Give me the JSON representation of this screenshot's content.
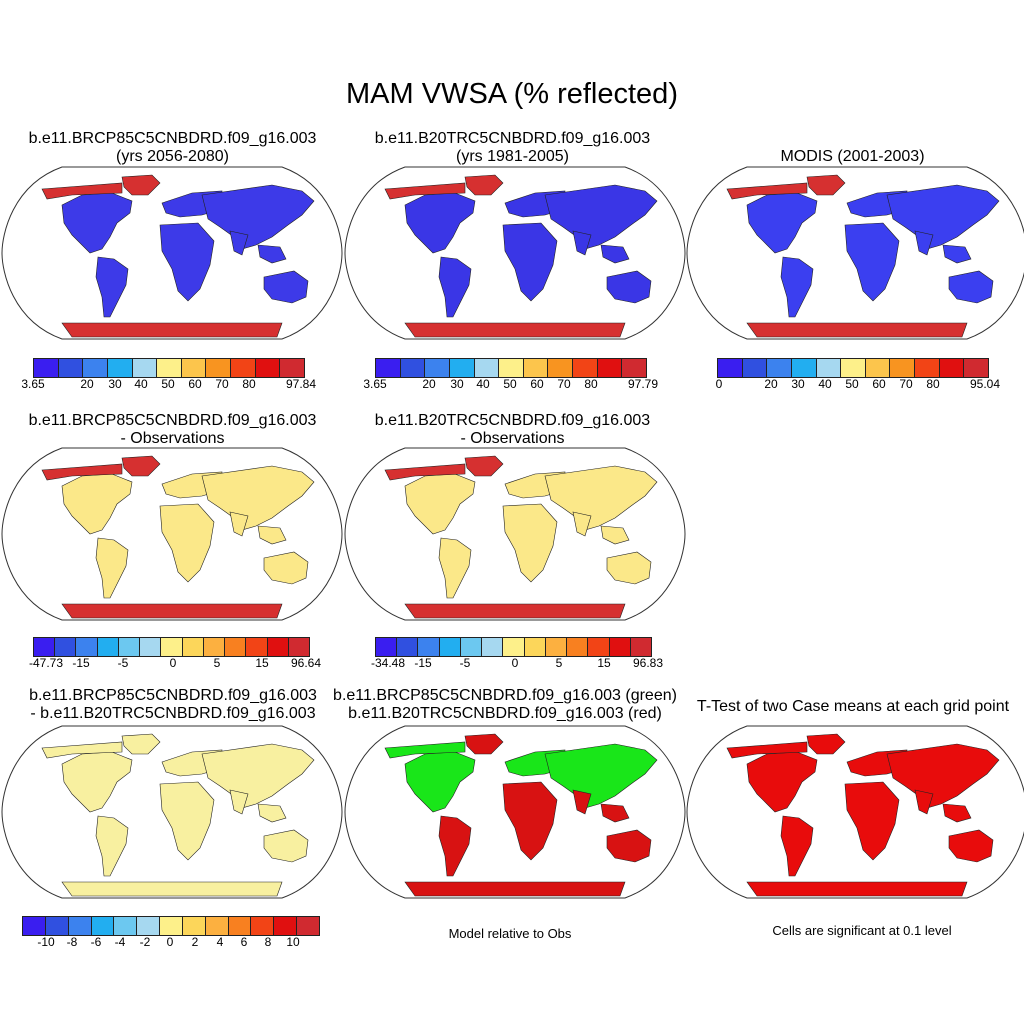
{
  "figure": {
    "title": "MAM VWSA (% reflected)"
  },
  "colors": {
    "full": [
      "#3a1ef0",
      "#3050e0",
      "#3c82ee",
      "#22aef0",
      "#a6d8f0",
      "#fdf08a",
      "#fcc54c",
      "#f89420",
      "#f24416",
      "#e01010",
      "#d02a30"
    ],
    "diff": [
      "#3a1ef0",
      "#3050e0",
      "#3c82ee",
      "#22aef0",
      "#6cc8f0",
      "#a6d8f0",
      "#fdf08a",
      "#fcd65a",
      "#fcb040",
      "#f88020",
      "#f24416",
      "#e01010",
      "#d02a30"
    ],
    "paired": [
      "#3a1ef0",
      "#3050e0",
      "#3c82ee",
      "#22aef0",
      "#6cc8f0",
      "#a6d8f0",
      "#fdf08a",
      "#fcd65a",
      "#fcb040",
      "#f88020",
      "#f24416",
      "#e01010",
      "#d02a30"
    ],
    "land_case1": "#3d3ae8",
    "land_case2": "#3a36e6",
    "land_obs": "#3b3ff0",
    "land_bias": "#fbe889",
    "land_diff": "#f8f0a0",
    "land_sig": "#e80c0c",
    "green": "#19e619",
    "red": "#d81212",
    "ice": "#d63030"
  },
  "panels": {
    "p1": {
      "title1": "b.e11.BRCP85C5CNBDRD.f09_g16.003",
      "title2": "(yrs 2056-2080)",
      "ticks": [
        "3.65",
        "20",
        "30",
        "40",
        "50",
        "60",
        "70",
        "80",
        "97.84"
      ]
    },
    "p2": {
      "title1": "b.e11.B20TRC5CNBDRD.f09_g16.003",
      "title2": "(yrs 1981-2005)",
      "ticks": [
        "3.65",
        "20",
        "30",
        "40",
        "50",
        "60",
        "70",
        "80",
        "97.79"
      ]
    },
    "p3": {
      "title1": "MODIS (2001-2003)",
      "ticks": [
        "0",
        "20",
        "30",
        "40",
        "50",
        "60",
        "70",
        "80",
        "95.04"
      ]
    },
    "p4": {
      "title1": "b.e11.BRCP85C5CNBDRD.f09_g16.003",
      "title2": "- Observations",
      "ticks": [
        "-47.73",
        "-15",
        "-5",
        "0",
        "5",
        "15",
        "96.64"
      ]
    },
    "p5": {
      "title1": "b.e11.B20TRC5CNBDRD.f09_g16.003",
      "title2": "- Observations",
      "ticks": [
        "-34.48",
        "-15",
        "-5",
        "0",
        "5",
        "15",
        "96.83"
      ]
    },
    "p7": {
      "title1": "b.e11.BRCP85C5CNBDRD.f09_g16.003",
      "title2": "- b.e11.B20TRC5CNBDRD.f09_g16.003",
      "ticks": [
        "-10",
        "-8",
        "-6",
        "-4",
        "-2",
        "0",
        "2",
        "4",
        "6",
        "8",
        "10"
      ]
    },
    "p8": {
      "title1": "b.e11.BRCP85C5CNBDRD.f09_g16.003 (green)",
      "title2": "b.e11.B20TRC5CNBDRD.f09_g16.003 (red)",
      "note": "Model relative to Obs"
    },
    "p9": {
      "title1": "T-Test of two Case means at each grid point",
      "note": "Cells are significant at 0.1 level"
    }
  }
}
